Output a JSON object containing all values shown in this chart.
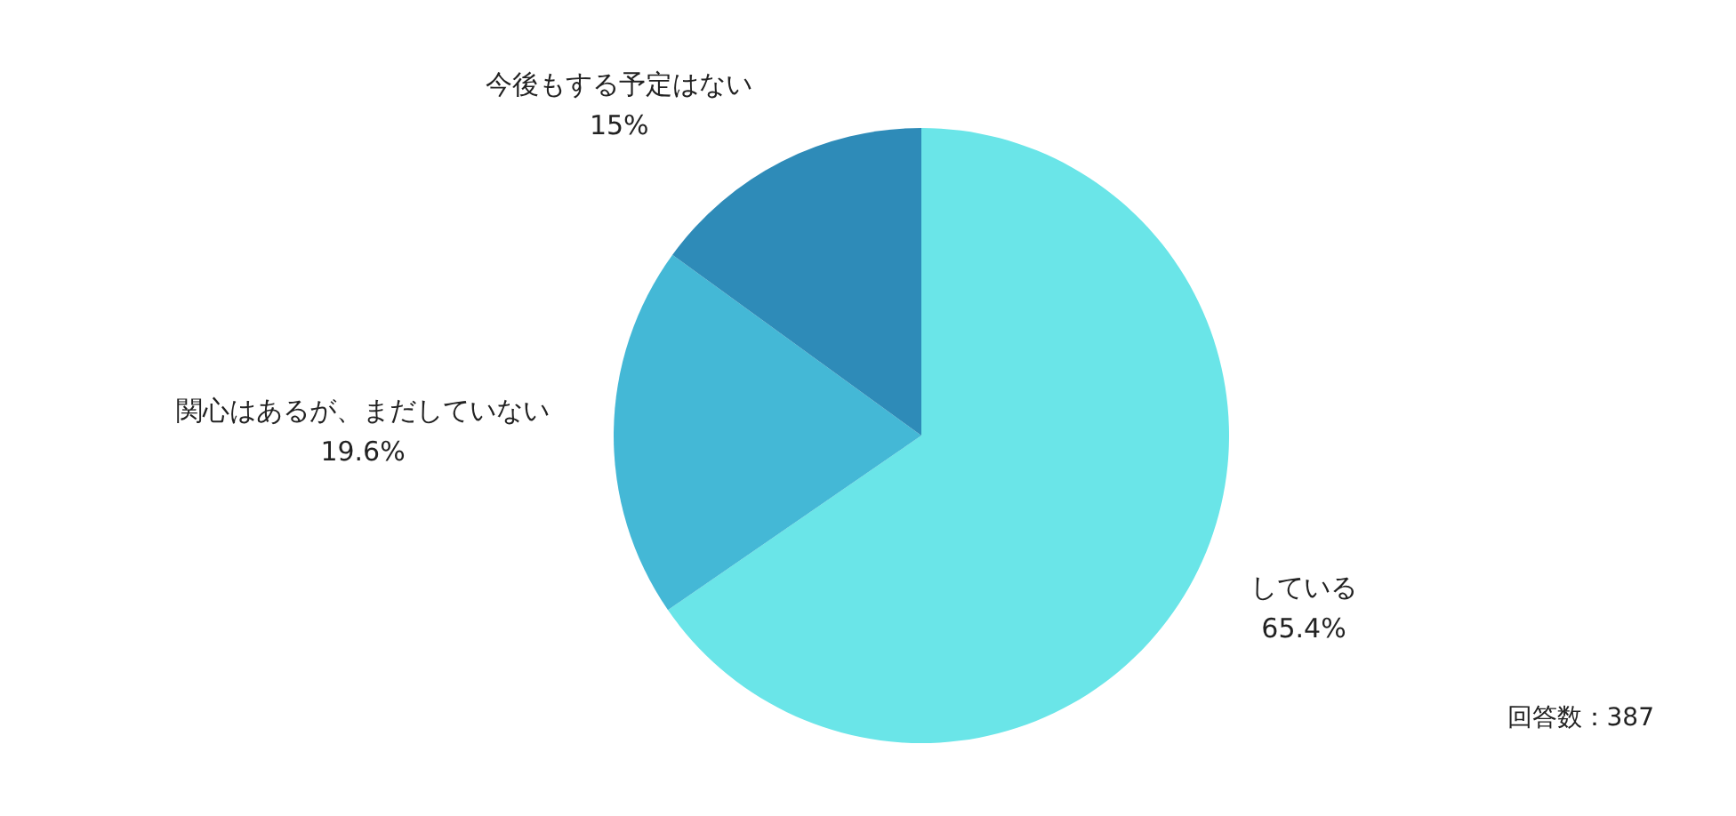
{
  "chart_data": {
    "type": "pie",
    "categories": [
      "している",
      "関心はあるが、まだしていない",
      "今後もする予定はない"
    ],
    "values": [
      65.4,
      19.6,
      15
    ],
    "colors": [
      "#6ae5e8",
      "#44b8d6",
      "#2e8bb8"
    ],
    "value_labels": [
      "65.4%",
      "19.6%",
      "15%"
    ],
    "annotations": [
      "回答数：387"
    ]
  }
}
